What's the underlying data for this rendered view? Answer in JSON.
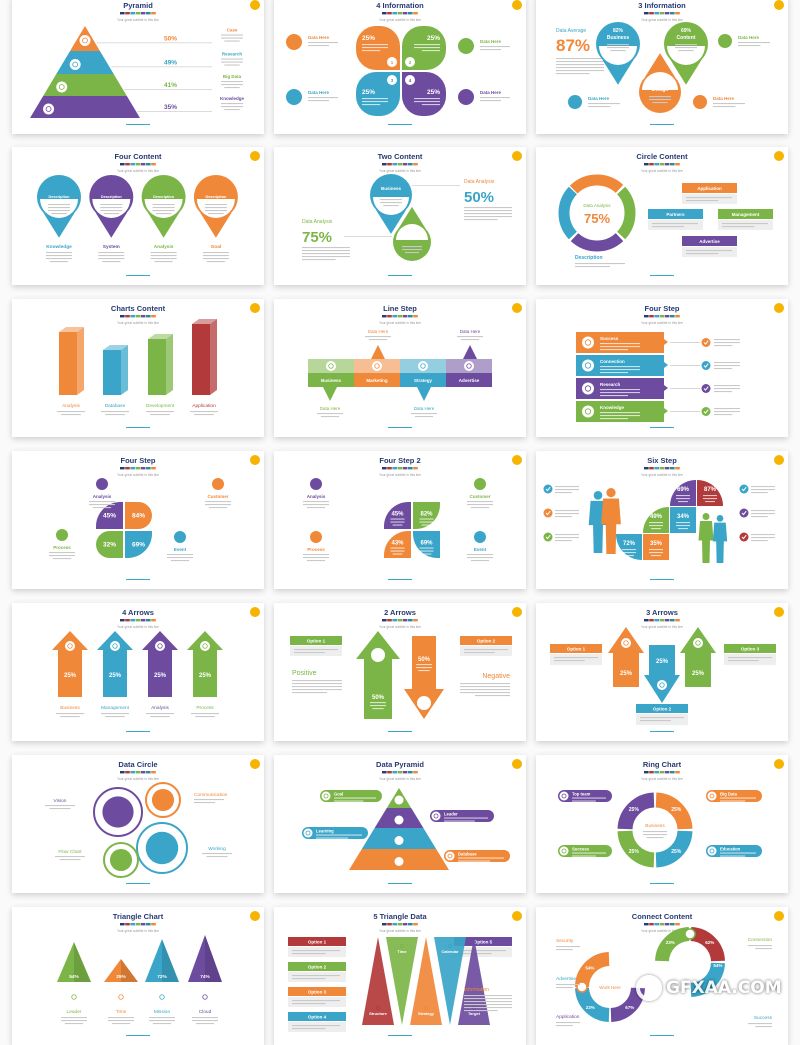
{
  "colors": {
    "orange": "#f0883a",
    "blue": "#3aa5c8",
    "green": "#7cb547",
    "purple": "#6d4c9f",
    "red": "#b33a3a",
    "navy": "#283a73",
    "yellow": "#f5b400"
  },
  "subtitle": "Your great subtitle in this line",
  "watermark": "GFXAA.COM",
  "slides": [
    {
      "title": "Pyramid",
      "items": [
        {
          "label": "Case",
          "value": "50%"
        },
        {
          "label": "Research",
          "value": "49%"
        },
        {
          "label": "Big Data",
          "value": "41%"
        },
        {
          "label": "Knowledge",
          "value": "35%"
        }
      ]
    },
    {
      "title": "4 Information",
      "petals": [
        {
          "value": "25%",
          "num": "1"
        },
        {
          "value": "25%",
          "num": "2"
        },
        {
          "value": "25%",
          "num": "3"
        },
        {
          "value": "25%",
          "num": "4"
        }
      ],
      "side": [
        "Data Here",
        "Data Here",
        "Data Here",
        "Data Here"
      ]
    },
    {
      "title": "3 Information",
      "average": {
        "label": "Data Average",
        "value": "87%"
      },
      "pins": [
        {
          "value": "82%",
          "label": "Business"
        },
        {
          "value": "69%",
          "label": "Content"
        },
        {
          "value": "74%",
          "label": "Design"
        }
      ],
      "side": [
        "Data Here",
        "Data Here",
        "Data Here"
      ]
    },
    {
      "title": "Four Content",
      "pins": [
        "Description",
        "Description",
        "Description",
        "Description"
      ],
      "labels": [
        "Knowledge",
        "System",
        "Analysis",
        "Goal"
      ]
    },
    {
      "title": "Two Content",
      "right": {
        "label": "Data Analysis",
        "value": "50%"
      },
      "left": {
        "label": "Data Analysis",
        "value": "75%"
      },
      "pins": [
        "Business",
        "Design"
      ]
    },
    {
      "title": "Circle Content",
      "center": {
        "label": "Data Analysis",
        "value": "75%"
      },
      "description": "Description",
      "boxes": [
        "Application",
        "Partners",
        "Management",
        "Advertise"
      ]
    },
    {
      "title": "Charts Content",
      "bars": [
        "Analysis",
        "Database",
        "Development",
        "Application"
      ]
    },
    {
      "title": "Line Step",
      "steps": [
        "Business",
        "Marketing",
        "Strategy",
        "Advertise"
      ],
      "callouts": [
        "Data Here",
        "Data Here",
        "Data Here",
        "Data Here"
      ]
    },
    {
      "title": "Four Step",
      "rows": [
        "Success",
        "Connection",
        "Research",
        "Knowledge"
      ]
    },
    {
      "title": "Four Step",
      "values": [
        "45%",
        "84%",
        "32%",
        "69%"
      ],
      "labels": [
        "Analysis",
        "Customer",
        "Process",
        "Event"
      ]
    },
    {
      "title": "Four Step 2",
      "values": [
        "45%",
        "82%",
        "43%",
        "69%"
      ],
      "labels": [
        "Analysis",
        "Customer",
        "Process",
        "Event"
      ]
    },
    {
      "title": "Six Step",
      "values": [
        "69%",
        "87%",
        "49%",
        "34%",
        "72%",
        "35%"
      ]
    },
    {
      "title": "4 Arrows",
      "values": [
        "25%",
        "25%",
        "25%",
        "25%"
      ],
      "labels": [
        "Business",
        "Management",
        "Analysis",
        "Process"
      ]
    },
    {
      "title": "2 Arrows",
      "options": [
        "Option 1",
        "Option 2"
      ],
      "positive": "Positive",
      "negative": "Negative",
      "values": [
        "50%",
        "50%"
      ]
    },
    {
      "title": "3 Arrows",
      "options": [
        "Option 1",
        "Option 2",
        "Option 3"
      ],
      "values": [
        "25%",
        "25%",
        "25%"
      ]
    },
    {
      "title": "Data Circle",
      "labels": [
        "Vision",
        "Communication",
        "Flow Chart",
        "Working"
      ]
    },
    {
      "title": "Data Pyramid",
      "labels": [
        "Goal",
        "Leader",
        "Learning",
        "Database"
      ]
    },
    {
      "title": "Ring Chart",
      "labels": [
        "Top team",
        "Big Data",
        "Success",
        "Education"
      ],
      "center": "Business",
      "values": [
        "25%",
        "25%",
        "25%",
        "25%"
      ]
    },
    {
      "title": "Triangle Chart",
      "values": [
        "54%",
        "25%",
        "72%",
        "74%"
      ],
      "labels": [
        "Leader",
        "Time",
        "Mission",
        "Cloud"
      ]
    },
    {
      "title": "5 Triangle Data",
      "options": [
        "Option 1",
        "Option 2",
        "Option 3",
        "Option 4",
        "Option 5"
      ],
      "labels": [
        "Structure",
        "Time",
        "Strategy",
        "Calendar",
        "Target"
      ],
      "info": "Information"
    },
    {
      "title": "Connect Content",
      "labels": [
        "Security",
        "Advertise",
        "Application",
        "Connection",
        "Success"
      ],
      "center": "Work Here",
      "values": [
        "54%",
        "23%",
        "67%",
        "23%",
        "62%",
        "54%"
      ]
    }
  ]
}
